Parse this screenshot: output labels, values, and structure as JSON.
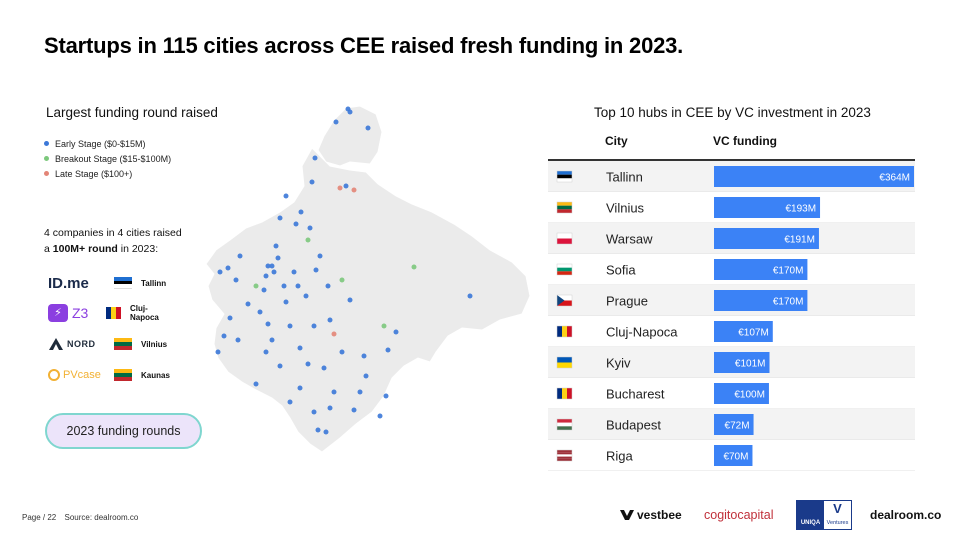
{
  "title": "Startups in 115 cities across CEE raised fresh funding in 2023.",
  "map": {
    "title": "Largest funding round raised",
    "legend": [
      {
        "label": "Early Stage ($0-$15M)",
        "color": "#3b78d8"
      },
      {
        "label": "Breakout Stage ($15-$100M)",
        "color": "#7cc87c"
      },
      {
        "label": "Late Stage ($100+)",
        "color": "#e38577"
      }
    ],
    "note_line1": "4 companies in 4 cities raised",
    "note_line2_prefix": "a ",
    "note_line2_bold": "100M+ round",
    "note_line2_suffix": " in 2023:",
    "companies": [
      {
        "logo": "ID.me",
        "logo_icon": "id-me-logo",
        "city": "Tallinn",
        "flag": "estonia"
      },
      {
        "logo": "Z3",
        "logo_icon": "z3-logo",
        "city": "Cluj-Napoca",
        "flag": "romania"
      },
      {
        "logo": "NORD",
        "logo_icon": "nord-security-logo",
        "city": "Vilnius",
        "flag": "lithuania"
      },
      {
        "logo": "PVcase",
        "logo_icon": "pvcase-logo",
        "city": "Kaunas",
        "flag": "lithuania"
      }
    ],
    "button_label": "2023 funding rounds"
  },
  "chart_data": {
    "type": "bar",
    "orientation": "horizontal",
    "title": "Top 10 hubs in CEE by VC investment in 2023",
    "column_headers": [
      "City",
      "VC funding"
    ],
    "categories": [
      "Tallinn",
      "Vilnius",
      "Warsaw",
      "Sofia",
      "Prague",
      "Cluj-Napoca",
      "Kyiv",
      "Bucharest",
      "Budapest",
      "Riga"
    ],
    "values": [
      364,
      193,
      191,
      170,
      170,
      107,
      101,
      100,
      72,
      70
    ],
    "value_labels": [
      "€364M",
      "€193M",
      "€191M",
      "€170M",
      "€170M",
      "€107M",
      "€101M",
      "€100M",
      "€72M",
      "€70M"
    ],
    "flags": [
      "estonia",
      "lithuania",
      "poland",
      "bulgaria",
      "czechia",
      "romania",
      "ukraine",
      "romania",
      "hungary",
      "latvia"
    ],
    "bar_color": "#3b82f6",
    "xlim": [
      0,
      364
    ]
  },
  "footer": {
    "page": "Page / 22",
    "source": "Source: dealroom.co"
  },
  "sponsors": {
    "vestbee": "vestbee",
    "cogito": "cogitocapital",
    "uniqa_top": "UNIQA",
    "uniqa_bottom": "Ventures",
    "dealroom": "dealroom.co"
  }
}
